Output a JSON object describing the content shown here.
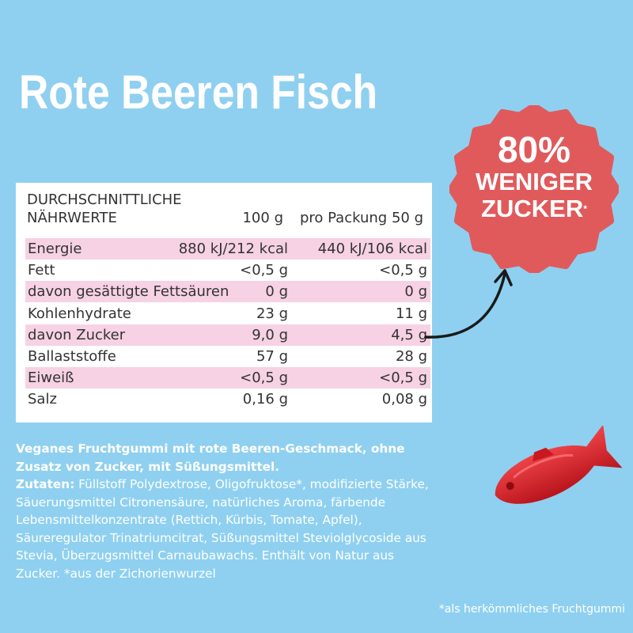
{
  "title": "Rote Beeren Fisch",
  "nutrition": {
    "header_line1": "DURCHSCHNITTLICHE",
    "header_line2": "NÄHRWERTE",
    "col1": "100 g",
    "col2": "pro Packung 50 g",
    "rows": [
      {
        "name": "Energie",
        "per100": "880 kJ/212 kcal",
        "perPack": "440 kJ/106 kcal"
      },
      {
        "name": "Fett",
        "per100": "<0,5 g",
        "perPack": "<0,5 g"
      },
      {
        "name": "davon gesättigte Fettsäuren",
        "per100": "0 g",
        "perPack": "0 g"
      },
      {
        "name": "Kohlenhydrate",
        "per100": "23 g",
        "perPack": "11 g"
      },
      {
        "name": "davon Zucker",
        "per100": "9,0 g",
        "perPack": "4,5 g"
      },
      {
        "name": "Ballaststoffe",
        "per100": "57 g",
        "perPack": "28 g"
      },
      {
        "name": "Eiweiß",
        "per100": "<0,5 g",
        "perPack": "<0,5 g"
      },
      {
        "name": "Salz",
        "per100": "0,16 g",
        "perPack": "0,08 g"
      }
    ]
  },
  "badge": {
    "line1": "80%",
    "line2": "WENIGER",
    "line3": "ZUCKER",
    "mark": "*",
    "color": "#e05a5c"
  },
  "description": {
    "lead": "Veganes Fruchtgummi mit rote Beeren-Geschmack, ohne Zusatz von Zucker, mit Süßungsmittel.",
    "ingredients_label": "Zutaten:",
    "ingredients": " Füllstoff Polydextrose, Oligofruktose*, modifizierte Stärke, Säuerungsmittel Citronensäure, natürliches Aroma, färbende Lebensmittelkonzentrate (Rettich, Kürbis, Tomate, Apfel), Säureregulator Trinatriumcitrat, Süßungsmittel Steviolglycoside aus Stevia, Überzugsmittel Carnaubawachs. Enthält von Natur aus Zucker. *aus der Zichorienwurzel"
  },
  "footnote": "*als herkömmliches Fruchtgummi",
  "colors": {
    "background": "#8fd0f0",
    "row_highlight": "#f6d2e4",
    "fish": "#d8232a"
  }
}
